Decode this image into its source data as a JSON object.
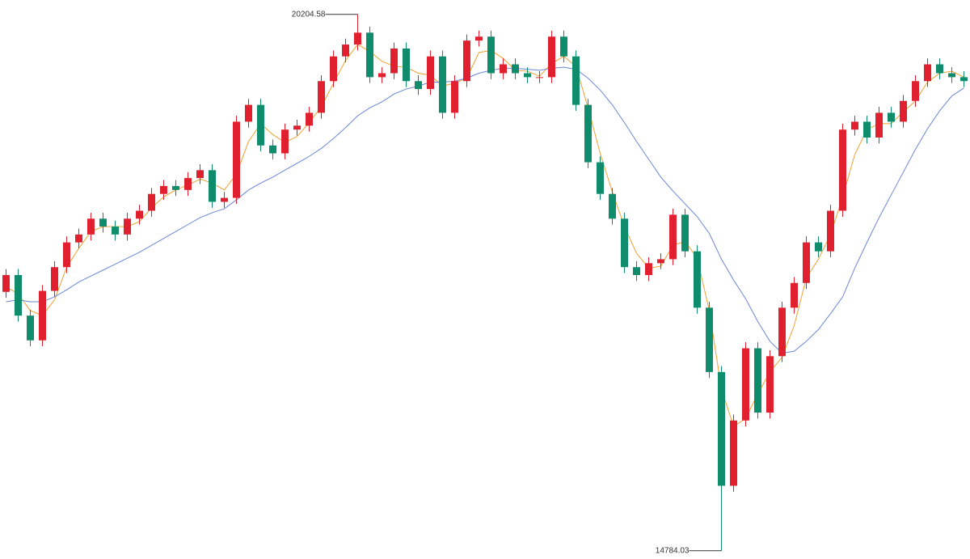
{
  "chart_data": {
    "type": "candlestick",
    "ylim": [
      14700,
      20350
    ],
    "up_color": "#e0202f",
    "down_color": "#0f8c6c",
    "open": [
      17400,
      17570,
      17160,
      16910,
      17410,
      17650,
      17900,
      17980,
      18140,
      18060,
      17980,
      18140,
      18220,
      18390,
      18470,
      18430,
      18550,
      18630,
      18310,
      18350,
      19120,
      19290,
      18880,
      18800,
      19040,
      19080,
      19210,
      19530,
      19780,
      19900,
      20020,
      19570,
      19610,
      19860,
      19530,
      19450,
      19780,
      19210,
      19530,
      19940,
      19980,
      19610,
      19700,
      19610,
      19570,
      19570,
      19980,
      19780,
      19290,
      18710,
      18390,
      18140,
      17650,
      17570,
      17690,
      17730,
      18180,
      17810,
      17240,
      16590,
      15440,
      16100,
      16830,
      16180,
      16750,
      17240,
      17490,
      17900,
      17810,
      18220,
      19040,
      19120,
      18960,
      19210,
      19120,
      19330,
      19530,
      19700,
      19610,
      19570
    ],
    "high": [
      17630,
      17630,
      17220,
      17470,
      17710,
      17960,
      18040,
      18200,
      18200,
      18120,
      18200,
      18280,
      18450,
      18530,
      18530,
      18610,
      18690,
      18690,
      18410,
      19180,
      19350,
      19350,
      18940,
      19100,
      19140,
      19270,
      19590,
      19840,
      19960,
      20204.58,
      20080,
      19670,
      19920,
      19920,
      19590,
      19840,
      19840,
      19590,
      20000,
      20040,
      20040,
      19760,
      19760,
      19670,
      19630,
      20040,
      20040,
      19840,
      19350,
      18770,
      18450,
      18200,
      17710,
      17750,
      17790,
      18240,
      18240,
      17870,
      17300,
      16650,
      16160,
      16890,
      16890,
      16810,
      17300,
      17550,
      17960,
      17960,
      18280,
      19100,
      19180,
      19180,
      19270,
      19270,
      19390,
      19590,
      19760,
      19760,
      19670,
      19630
    ],
    "low": [
      17340,
      17100,
      16850,
      16850,
      17350,
      17590,
      17840,
      17920,
      18000,
      17920,
      17920,
      18080,
      18160,
      18330,
      18370,
      18370,
      18490,
      18250,
      18250,
      18290,
      19060,
      18820,
      18740,
      18740,
      18980,
      19020,
      19150,
      19470,
      19720,
      19840,
      19510,
      19510,
      19550,
      19470,
      19390,
      19390,
      19150,
      19150,
      19470,
      19880,
      19550,
      19550,
      19550,
      19510,
      19510,
      19510,
      19720,
      19230,
      18650,
      18330,
      18080,
      17590,
      17510,
      17510,
      17630,
      17670,
      17750,
      17180,
      16530,
      14784.03,
      15380,
      16040,
      16120,
      16120,
      16690,
      17180,
      17430,
      17750,
      17750,
      18160,
      18980,
      18900,
      18900,
      19060,
      19060,
      19270,
      19470,
      19550,
      19510,
      19470
    ],
    "close": [
      17570,
      17160,
      16910,
      17410,
      17650,
      17900,
      17980,
      18140,
      18060,
      17980,
      18140,
      18220,
      18390,
      18470,
      18430,
      18550,
      18630,
      18310,
      18350,
      19120,
      19290,
      18880,
      18800,
      19040,
      19080,
      19210,
      19530,
      19780,
      19900,
      20020,
      19570,
      19610,
      19860,
      19530,
      19450,
      19780,
      19210,
      19530,
      19940,
      19980,
      19610,
      19700,
      19610,
      19570,
      19570,
      19980,
      19780,
      19290,
      18710,
      18390,
      18140,
      17650,
      17570,
      17690,
      17730,
      18180,
      17810,
      17240,
      16590,
      15440,
      16100,
      16830,
      16180,
      16750,
      17240,
      17490,
      17900,
      17810,
      18220,
      19040,
      19120,
      18960,
      19210,
      19120,
      19330,
      19530,
      19700,
      19610,
      19570,
      19530
    ],
    "lines": [
      {
        "color": "#f0a030",
        "values": [
          17450,
          17380,
          17210,
          17160,
          17320,
          17650,
          17840,
          18010,
          18060,
          18060,
          18060,
          18110,
          18250,
          18360,
          18430,
          18480,
          18540,
          18500,
          18430,
          18590,
          18920,
          19100,
          18990,
          18910,
          18970,
          19110,
          19270,
          19510,
          19740,
          19900,
          19830,
          19730,
          19680,
          19670,
          19610,
          19590,
          19480,
          19510,
          19560,
          19820,
          19840,
          19760,
          19640,
          19630,
          19580,
          19710,
          19780,
          19680,
          19260,
          18800,
          18410,
          18060,
          17790,
          17640,
          17660,
          17870,
          17910,
          17740,
          17210,
          16420,
          16040,
          16120,
          16370,
          16590,
          16740,
          17060,
          17540,
          17730,
          17980,
          18360,
          18790,
          19040,
          19100,
          19100,
          19220,
          19330,
          19520,
          19610,
          19630,
          19570
        ]
      },
      {
        "color": "#6a86d8",
        "values": [
          17300,
          17320,
          17300,
          17300,
          17350,
          17420,
          17500,
          17560,
          17620,
          17680,
          17740,
          17800,
          17870,
          17940,
          18010,
          18080,
          18150,
          18200,
          18240,
          18330,
          18430,
          18500,
          18560,
          18630,
          18700,
          18770,
          18850,
          18950,
          19060,
          19180,
          19260,
          19320,
          19400,
          19450,
          19480,
          19520,
          19520,
          19530,
          19560,
          19610,
          19640,
          19660,
          19660,
          19650,
          19640,
          19660,
          19670,
          19650,
          19560,
          19440,
          19290,
          19110,
          18920,
          18740,
          18560,
          18420,
          18290,
          18160,
          17990,
          17730,
          17520,
          17330,
          17100,
          16900,
          16780,
          16800,
          16900,
          17020,
          17180,
          17350,
          17640,
          17900,
          18150,
          18380,
          18610,
          18840,
          19050,
          19230,
          19380,
          19460
        ]
      }
    ]
  }
}
